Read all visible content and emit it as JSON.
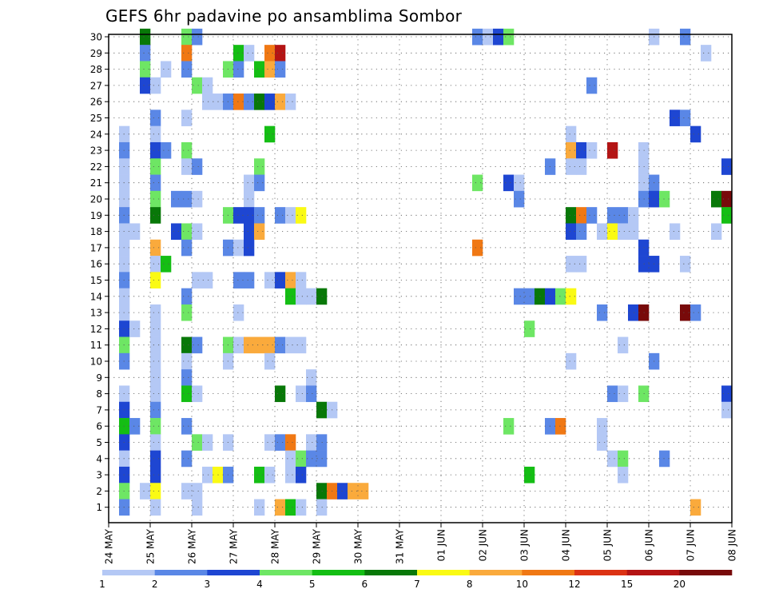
{
  "chart_data": {
    "type": "heatmap",
    "title": "GEFS 6hr padavine po ansamblima Sombor",
    "xlabel": "",
    "ylabel": "",
    "x_tick_labels": [
      "24 MAY",
      "25 MAY",
      "26 MAY",
      "27 MAY",
      "28 MAY",
      "29 MAY",
      "30 MAY",
      "31 MAY",
      "01 JUN",
      "02 JUN",
      "03 JUN",
      "04 JUN",
      "05 JUN",
      "06 JUN",
      "07 JUN",
      "08 JUN"
    ],
    "y_tick_labels": [
      "1",
      "2",
      "3",
      "4",
      "5",
      "6",
      "7",
      "8",
      "9",
      "10",
      "11",
      "12",
      "13",
      "14",
      "15",
      "16",
      "17",
      "18",
      "19",
      "20",
      "21",
      "22",
      "23",
      "24",
      "25",
      "26",
      "27",
      "28",
      "29",
      "30"
    ],
    "x_steps_per_day": 4,
    "x_total_steps": 60,
    "y_members": 30,
    "grid": true,
    "colorbar": {
      "placement": "bottom",
      "labels": [
        "1",
        "2",
        "3",
        "4",
        "5",
        "6",
        "7",
        "8",
        "10",
        "12",
        "15",
        "20"
      ],
      "colors": [
        "#b4c8f5",
        "#5a87e6",
        "#1e46d2",
        "#6ee664",
        "#14be14",
        "#087808",
        "#fafa14",
        "#faaa3c",
        "#f07814",
        "#dc3214",
        "#b41414",
        "#780a0a"
      ]
    },
    "cells": [
      [
        3,
        30,
        6
      ],
      [
        7,
        30,
        4
      ],
      [
        8,
        30,
        2
      ],
      [
        35,
        30,
        2
      ],
      [
        36,
        30,
        1
      ],
      [
        37,
        30,
        3
      ],
      [
        38,
        30,
        4
      ],
      [
        52,
        30,
        1
      ],
      [
        55,
        30,
        2
      ],
      [
        3,
        29,
        2
      ],
      [
        7,
        29,
        9
      ],
      [
        12,
        29,
        5
      ],
      [
        13,
        29,
        1
      ],
      [
        15,
        29,
        9
      ],
      [
        16,
        29,
        11
      ],
      [
        57,
        29,
        1
      ],
      [
        3,
        28,
        4
      ],
      [
        5,
        28,
        1
      ],
      [
        7,
        28,
        2
      ],
      [
        11,
        28,
        4
      ],
      [
        12,
        28,
        2
      ],
      [
        14,
        28,
        5
      ],
      [
        15,
        28,
        8
      ],
      [
        16,
        28,
        2
      ],
      [
        3,
        27,
        3
      ],
      [
        4,
        27,
        1
      ],
      [
        8,
        27,
        4
      ],
      [
        9,
        27,
        1
      ],
      [
        46,
        27,
        2
      ],
      [
        9,
        26,
        1
      ],
      [
        10,
        26,
        1
      ],
      [
        11,
        26,
        2
      ],
      [
        12,
        26,
        9
      ],
      [
        13,
        26,
        2
      ],
      [
        14,
        26,
        6
      ],
      [
        15,
        26,
        3
      ],
      [
        16,
        26,
        8
      ],
      [
        17,
        26,
        1
      ],
      [
        4,
        25,
        2
      ],
      [
        7,
        25,
        1
      ],
      [
        54,
        25,
        3
      ],
      [
        55,
        25,
        2
      ],
      [
        1,
        24,
        1
      ],
      [
        4,
        24,
        1
      ],
      [
        15,
        24,
        5
      ],
      [
        44,
        24,
        1
      ],
      [
        56,
        24,
        3
      ],
      [
        1,
        23,
        2
      ],
      [
        4,
        23,
        3
      ],
      [
        5,
        23,
        2
      ],
      [
        7,
        23,
        4
      ],
      [
        44,
        23,
        8
      ],
      [
        45,
        23,
        3
      ],
      [
        46,
        23,
        1
      ],
      [
        48,
        23,
        11
      ],
      [
        51,
        23,
        1
      ],
      [
        1,
        22,
        1
      ],
      [
        4,
        22,
        4
      ],
      [
        7,
        22,
        1
      ],
      [
        8,
        22,
        2
      ],
      [
        14,
        22,
        4
      ],
      [
        42,
        22,
        2
      ],
      [
        44,
        22,
        1
      ],
      [
        45,
        22,
        1
      ],
      [
        51,
        22,
        1
      ],
      [
        59,
        22,
        3
      ],
      [
        1,
        21,
        1
      ],
      [
        4,
        21,
        2
      ],
      [
        13,
        21,
        1
      ],
      [
        14,
        21,
        2
      ],
      [
        35,
        21,
        4
      ],
      [
        38,
        21,
        3
      ],
      [
        39,
        21,
        1
      ],
      [
        51,
        21,
        1
      ],
      [
        52,
        21,
        2
      ],
      [
        1,
        20,
        1
      ],
      [
        4,
        20,
        4
      ],
      [
        6,
        20,
        2
      ],
      [
        7,
        20,
        2
      ],
      [
        8,
        20,
        1
      ],
      [
        13,
        20,
        1
      ],
      [
        39,
        20,
        2
      ],
      [
        51,
        20,
        2
      ],
      [
        52,
        20,
        3
      ],
      [
        53,
        20,
        4
      ],
      [
        58,
        20,
        6
      ],
      [
        59,
        20,
        12
      ],
      [
        1,
        19,
        2
      ],
      [
        4,
        19,
        6
      ],
      [
        11,
        19,
        4
      ],
      [
        12,
        19,
        3
      ],
      [
        13,
        19,
        3
      ],
      [
        14,
        19,
        2
      ],
      [
        16,
        19,
        2
      ],
      [
        17,
        19,
        1
      ],
      [
        18,
        19,
        7
      ],
      [
        44,
        19,
        6
      ],
      [
        45,
        19,
        9
      ],
      [
        46,
        19,
        2
      ],
      [
        48,
        19,
        2
      ],
      [
        49,
        19,
        2
      ],
      [
        50,
        19,
        1
      ],
      [
        59,
        19,
        5
      ],
      [
        1,
        18,
        1
      ],
      [
        2,
        18,
        1
      ],
      [
        6,
        18,
        3
      ],
      [
        7,
        18,
        4
      ],
      [
        8,
        18,
        1
      ],
      [
        13,
        18,
        3
      ],
      [
        14,
        18,
        8
      ],
      [
        44,
        18,
        3
      ],
      [
        45,
        18,
        2
      ],
      [
        47,
        18,
        1
      ],
      [
        48,
        18,
        7
      ],
      [
        49,
        18,
        1
      ],
      [
        50,
        18,
        1
      ],
      [
        54,
        18,
        1
      ],
      [
        58,
        18,
        1
      ],
      [
        1,
        17,
        1
      ],
      [
        4,
        17,
        8
      ],
      [
        7,
        17,
        2
      ],
      [
        11,
        17,
        2
      ],
      [
        12,
        17,
        1
      ],
      [
        13,
        17,
        3
      ],
      [
        35,
        17,
        9
      ],
      [
        51,
        17,
        3
      ],
      [
        1,
        16,
        1
      ],
      [
        4,
        16,
        1
      ],
      [
        5,
        16,
        5
      ],
      [
        44,
        16,
        1
      ],
      [
        45,
        16,
        1
      ],
      [
        51,
        16,
        3
      ],
      [
        52,
        16,
        3
      ],
      [
        55,
        16,
        1
      ],
      [
        1,
        15,
        2
      ],
      [
        4,
        15,
        7
      ],
      [
        8,
        15,
        1
      ],
      [
        9,
        15,
        1
      ],
      [
        12,
        15,
        2
      ],
      [
        13,
        15,
        2
      ],
      [
        15,
        15,
        1
      ],
      [
        16,
        15,
        3
      ],
      [
        17,
        15,
        8
      ],
      [
        18,
        15,
        1
      ],
      [
        1,
        14,
        1
      ],
      [
        7,
        14,
        2
      ],
      [
        17,
        14,
        5
      ],
      [
        18,
        14,
        1
      ],
      [
        19,
        14,
        1
      ],
      [
        20,
        14,
        6
      ],
      [
        39,
        14,
        2
      ],
      [
        40,
        14,
        2
      ],
      [
        41,
        14,
        6
      ],
      [
        42,
        14,
        3
      ],
      [
        43,
        14,
        4
      ],
      [
        44,
        14,
        7
      ],
      [
        1,
        13,
        1
      ],
      [
        4,
        13,
        1
      ],
      [
        7,
        13,
        4
      ],
      [
        12,
        13,
        1
      ],
      [
        47,
        13,
        2
      ],
      [
        50,
        13,
        3
      ],
      [
        51,
        13,
        12
      ],
      [
        55,
        13,
        12
      ],
      [
        56,
        13,
        2
      ],
      [
        1,
        12,
        3
      ],
      [
        2,
        12,
        1
      ],
      [
        4,
        12,
        1
      ],
      [
        40,
        12,
        4
      ],
      [
        1,
        11,
        4
      ],
      [
        4,
        11,
        1
      ],
      [
        7,
        11,
        6
      ],
      [
        8,
        11,
        2
      ],
      [
        11,
        11,
        4
      ],
      [
        12,
        11,
        1
      ],
      [
        13,
        11,
        8
      ],
      [
        14,
        11,
        8
      ],
      [
        15,
        11,
        8
      ],
      [
        16,
        11,
        2
      ],
      [
        17,
        11,
        1
      ],
      [
        18,
        11,
        1
      ],
      [
        49,
        11,
        1
      ],
      [
        1,
        10,
        2
      ],
      [
        4,
        10,
        1
      ],
      [
        7,
        10,
        1
      ],
      [
        11,
        10,
        1
      ],
      [
        15,
        10,
        1
      ],
      [
        52,
        10,
        2
      ],
      [
        44,
        10,
        1
      ],
      [
        4,
        9,
        1
      ],
      [
        7,
        9,
        2
      ],
      [
        19,
        9,
        1
      ],
      [
        1,
        8,
        1
      ],
      [
        4,
        8,
        1
      ],
      [
        7,
        8,
        5
      ],
      [
        8,
        8,
        1
      ],
      [
        16,
        8,
        6
      ],
      [
        18,
        8,
        1
      ],
      [
        19,
        8,
        2
      ],
      [
        48,
        8,
        2
      ],
      [
        49,
        8,
        1
      ],
      [
        51,
        8,
        4
      ],
      [
        59,
        8,
        3
      ],
      [
        1,
        7,
        3
      ],
      [
        4,
        7,
        2
      ],
      [
        20,
        7,
        6
      ],
      [
        21,
        7,
        1
      ],
      [
        59,
        7,
        1
      ],
      [
        1,
        6,
        5
      ],
      [
        2,
        6,
        2
      ],
      [
        4,
        6,
        4
      ],
      [
        7,
        6,
        2
      ],
      [
        38,
        6,
        4
      ],
      [
        42,
        6,
        2
      ],
      [
        43,
        6,
        9
      ],
      [
        47,
        6,
        1
      ],
      [
        1,
        5,
        3
      ],
      [
        4,
        5,
        1
      ],
      [
        8,
        5,
        4
      ],
      [
        9,
        5,
        1
      ],
      [
        11,
        5,
        1
      ],
      [
        15,
        5,
        1
      ],
      [
        16,
        5,
        2
      ],
      [
        17,
        5,
        9
      ],
      [
        19,
        5,
        1
      ],
      [
        20,
        5,
        2
      ],
      [
        47,
        5,
        1
      ],
      [
        1,
        4,
        1
      ],
      [
        4,
        4,
        3
      ],
      [
        7,
        4,
        2
      ],
      [
        17,
        4,
        1
      ],
      [
        18,
        4,
        4
      ],
      [
        19,
        4,
        2
      ],
      [
        20,
        4,
        2
      ],
      [
        48,
        4,
        1
      ],
      [
        49,
        4,
        4
      ],
      [
        53,
        4,
        2
      ],
      [
        1,
        3,
        3
      ],
      [
        4,
        3,
        3
      ],
      [
        9,
        3,
        1
      ],
      [
        10,
        3,
        7
      ],
      [
        11,
        3,
        2
      ],
      [
        14,
        3,
        5
      ],
      [
        15,
        3,
        1
      ],
      [
        17,
        3,
        1
      ],
      [
        18,
        3,
        3
      ],
      [
        40,
        3,
        5
      ],
      [
        49,
        3,
        1
      ],
      [
        1,
        2,
        4
      ],
      [
        3,
        2,
        1
      ],
      [
        4,
        2,
        7
      ],
      [
        7,
        2,
        1
      ],
      [
        8,
        2,
        1
      ],
      [
        20,
        2,
        6
      ],
      [
        21,
        2,
        9
      ],
      [
        22,
        2,
        3
      ],
      [
        23,
        2,
        8
      ],
      [
        24,
        2,
        8
      ],
      [
        1,
        1,
        2
      ],
      [
        4,
        1,
        1
      ],
      [
        8,
        1,
        1
      ],
      [
        14,
        1,
        1
      ],
      [
        16,
        1,
        8
      ],
      [
        17,
        1,
        5
      ],
      [
        18,
        1,
        1
      ],
      [
        20,
        1,
        1
      ],
      [
        56,
        1,
        8
      ]
    ]
  }
}
